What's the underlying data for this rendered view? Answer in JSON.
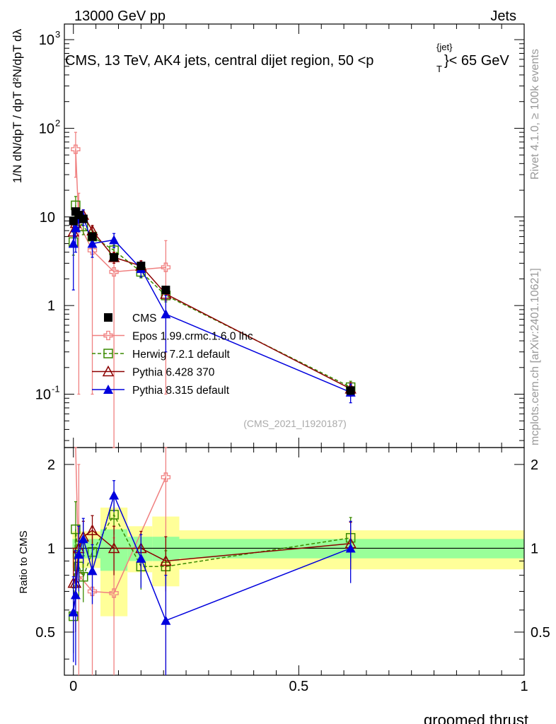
{
  "header": {
    "left": "13000 GeV pp",
    "right": "Jets"
  },
  "title": "CMS, 13 TeV, AK4 jets, central dijet region, 50 <p",
  "title_sup": "{jet}",
  "title_sub": "T",
  "title_tail": "}< 65 GeV",
  "ylabel_main": "1/N dN/dpT / dpT d²N/dpT dλ",
  "ylabel_ratio": "Ratio to CMS",
  "xlabel": "groomed thrust",
  "analysis_id": "(CMS_2021_I1920187)",
  "side_text_top": "Rivet 4.1.0, ≥ 100k events",
  "side_text_bottom": "mcplots.cern.ch [arXiv:2401.10621]",
  "colors": {
    "cms": "#000000",
    "epos": "#f08080",
    "herwig": "#3a8a00",
    "pythia6": "#8b0000",
    "pythia8": "#0000dd",
    "band_inner": "#99ff99",
    "band_outer": "#ffff99"
  },
  "chart_data": {
    "type": "line",
    "title": "CMS, 13 TeV, AK4 jets, central dijet region, 50 < pT^jet < 65 GeV",
    "xlabel": "groomed thrust",
    "ylabel": "1/N dN/dpT / dpT d²N/dpT dλ",
    "xlim": [
      -0.02,
      1.0
    ],
    "ylim_main": [
      0.025,
      1500
    ],
    "yscale_main": "log",
    "ylim_ratio": [
      0.35,
      2.3
    ],
    "yscale_ratio": "log",
    "x_ticks": [
      "0",
      "0.5",
      "1"
    ],
    "y_ticks_main": [
      "10^-1",
      "1",
      "10",
      "10^2",
      "10^3"
    ],
    "y_ticks_ratio": [
      "0.5",
      "1",
      "2"
    ],
    "legend_position": "center-left",
    "cms": {
      "name": "CMS",
      "x": [
        0.0,
        0.005,
        0.012,
        0.022,
        0.042,
        0.09,
        0.15,
        0.205,
        0.615
      ],
      "y": [
        9.0,
        11.5,
        10.5,
        9.5,
        6.0,
        3.5,
        2.8,
        1.5,
        0.11
      ],
      "err": [
        0.9,
        1.0,
        1.0,
        0.8,
        0.5,
        0.3,
        0.25,
        0.15,
        0.012
      ]
    },
    "series": [
      {
        "name": "Epos 1.99.crmc.1.6.0 lhc",
        "key": "epos",
        "marker": "open-cross",
        "x": [
          0.005,
          0.012,
          0.042,
          0.09,
          0.205
        ],
        "y": [
          58,
          8.5,
          4.2,
          2.4,
          2.7
        ],
        "err_lo": [
          30,
          8.4,
          4.1,
          2.39,
          2.6
        ],
        "err_hi": [
          32,
          10,
          2.0,
          1.5,
          2.7
        ],
        "ratio": [
          5.0,
          0.8,
          0.7,
          0.69,
          1.8
        ],
        "ratio_err_lo": [
          2.5,
          0.79,
          0.69,
          0.68,
          1.75
        ],
        "ratio_err_hi": [
          3.0,
          1.2,
          0.5,
          0.4,
          1.5
        ]
      },
      {
        "name": "Herwig 7.2.1 default",
        "key": "herwig",
        "marker": "open-square",
        "x": [
          0.0,
          0.005,
          0.012,
          0.022,
          0.042,
          0.09,
          0.15,
          0.205,
          0.615
        ],
        "y": [
          5.2,
          13.5,
          9.0,
          7.8,
          6.0,
          4.2,
          2.4,
          1.3,
          0.12
        ],
        "err_lo": [
          1.5,
          3.5,
          2.0,
          1.5,
          1.0,
          0.6,
          0.35,
          0.2,
          0.02
        ],
        "err_hi": [
          1.5,
          3.5,
          2.0,
          1.5,
          1.0,
          0.6,
          0.35,
          0.2,
          0.02
        ],
        "ratio": [
          0.57,
          1.17,
          0.86,
          0.79,
          0.97,
          1.32,
          0.86,
          0.86,
          1.09
        ],
        "ratio_err_lo": [
          0.15,
          0.3,
          0.2,
          0.15,
          0.15,
          0.2,
          0.15,
          0.12,
          0.2
        ],
        "ratio_err_hi": [
          0.15,
          0.3,
          0.2,
          0.15,
          0.15,
          0.2,
          0.15,
          0.12,
          0.2
        ]
      },
      {
        "name": "Pythia 6.428 370",
        "key": "pythia6",
        "marker": "open-triangle",
        "x": [
          0.0,
          0.005,
          0.012,
          0.022,
          0.042,
          0.09,
          0.15,
          0.205,
          0.615
        ],
        "y": [
          6.8,
          8.5,
          10.5,
          10.5,
          7.0,
          3.5,
          2.8,
          1.35,
          0.115
        ],
        "err_lo": [
          2.0,
          2.5,
          2.0,
          1.5,
          1.0,
          0.5,
          0.4,
          0.2,
          0.02
        ],
        "err_hi": [
          2.0,
          2.5,
          2.0,
          1.5,
          1.0,
          0.5,
          0.4,
          0.2,
          0.02
        ],
        "ratio": [
          0.75,
          0.75,
          1.0,
          1.1,
          1.16,
          1.0,
          1.0,
          0.9,
          1.04
        ],
        "ratio_err_lo": [
          0.25,
          0.25,
          0.2,
          0.15,
          0.15,
          0.2,
          0.15,
          0.2,
          0.2
        ],
        "ratio_err_hi": [
          0.25,
          0.25,
          0.2,
          0.15,
          0.15,
          0.2,
          0.15,
          0.2,
          0.2
        ]
      },
      {
        "name": "Pythia 8.315 default",
        "key": "pythia8",
        "marker": "filled-triangle",
        "x": [
          0.0,
          0.005,
          0.012,
          0.022,
          0.042,
          0.09,
          0.15,
          0.205,
          0.615
        ],
        "y": [
          5.0,
          7.5,
          9.5,
          10.0,
          5.0,
          5.5,
          2.6,
          0.8,
          0.105
        ],
        "err_lo": [
          3.5,
          3.5,
          2.5,
          2.0,
          1.5,
          1.0,
          0.5,
          0.5,
          0.025
        ],
        "err_hi": [
          3.5,
          3.5,
          2.5,
          2.0,
          1.5,
          1.0,
          0.5,
          0.5,
          0.025
        ],
        "ratio": [
          0.59,
          0.68,
          0.95,
          1.08,
          0.83,
          1.55,
          0.92,
          0.55,
          1.0
        ],
        "ratio_err_lo": [
          0.2,
          0.3,
          0.25,
          0.2,
          0.2,
          0.2,
          0.2,
          0.25,
          0.25
        ],
        "ratio_err_hi": [
          0.2,
          0.3,
          0.25,
          0.2,
          0.2,
          0.2,
          0.2,
          0.25,
          0.25
        ]
      }
    ],
    "ratio_bands": {
      "edges": [
        -0.002,
        0.002,
        0.008,
        0.016,
        0.03,
        0.06,
        0.12,
        0.175,
        0.235,
        1.0
      ],
      "inner_lo": [
        0.92,
        0.92,
        0.92,
        0.92,
        0.92,
        0.83,
        0.9,
        0.9,
        0.92
      ],
      "inner_hi": [
        1.08,
        1.08,
        1.08,
        1.08,
        1.08,
        1.17,
        1.1,
        1.1,
        1.08
      ],
      "outer_lo": [
        0.85,
        0.85,
        0.85,
        0.85,
        0.85,
        0.57,
        0.82,
        0.73,
        0.84
      ],
      "outer_hi": [
        1.15,
        1.15,
        1.15,
        1.15,
        1.15,
        1.4,
        1.2,
        1.3,
        1.16
      ]
    }
  }
}
